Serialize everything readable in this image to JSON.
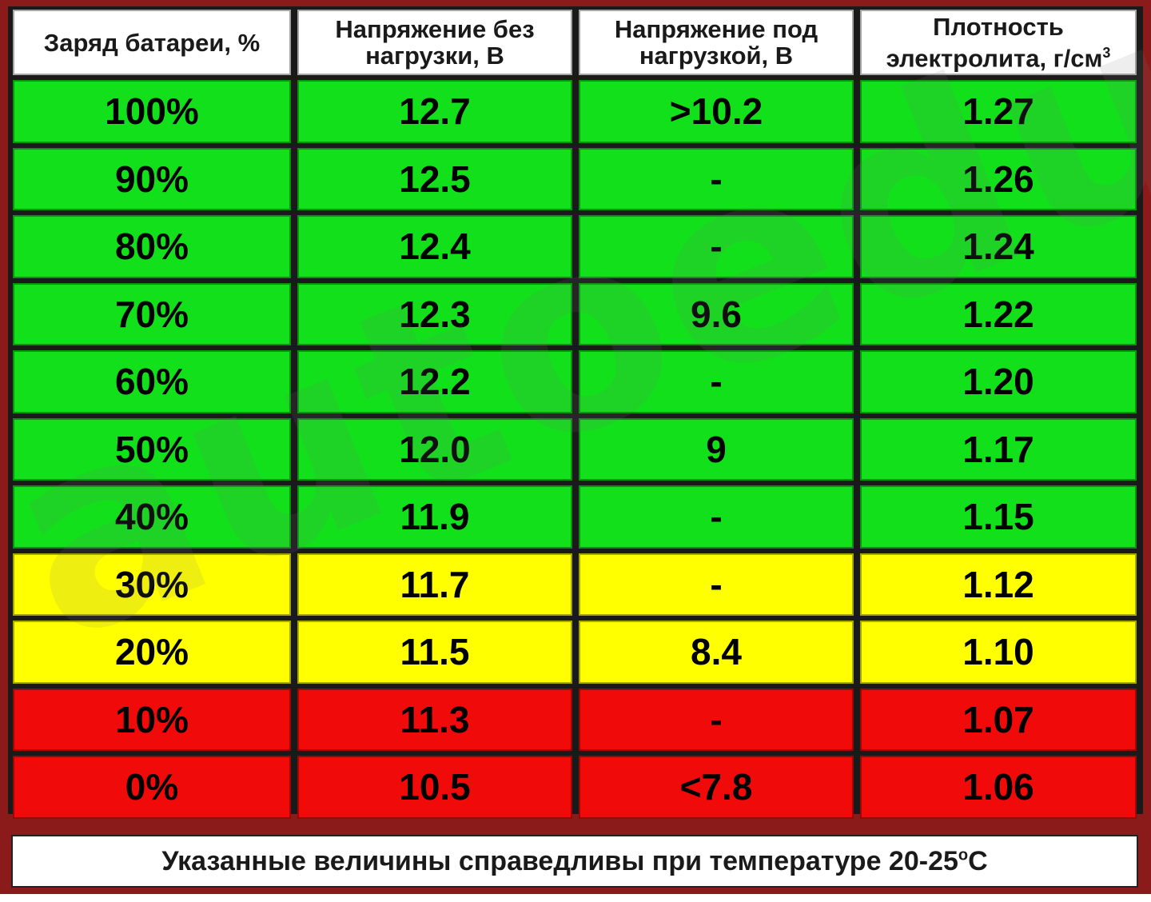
{
  "colors": {
    "green": "#12e01a",
    "yellow": "#ffff00",
    "red": "#f00a0a",
    "frame": "#8b1a1a"
  },
  "chart_data": {
    "type": "table",
    "headers": [
      {
        "line1": "Заряд батареи, %",
        "line2": ""
      },
      {
        "line1": "Напряжение без",
        "line2": "нагрузки, В"
      },
      {
        "line1": "Напряжение под",
        "line2": "нагрузкой, В"
      },
      {
        "line1": "Плотность",
        "line2": "электролита, г/см",
        "sup": "3"
      }
    ],
    "rows": [
      {
        "charge": "100%",
        "no_load": "12.7",
        "under_load": ">10.2",
        "density": "1.27",
        "status": "green"
      },
      {
        "charge": "90%",
        "no_load": "12.5",
        "under_load": "-",
        "density": "1.26",
        "status": "green"
      },
      {
        "charge": "80%",
        "no_load": "12.4",
        "under_load": "-",
        "density": "1.24",
        "status": "green"
      },
      {
        "charge": "70%",
        "no_load": "12.3",
        "under_load": "9.6",
        "density": "1.22",
        "status": "green"
      },
      {
        "charge": "60%",
        "no_load": "12.2",
        "under_load": "-",
        "density": "1.20",
        "status": "green"
      },
      {
        "charge": "50%",
        "no_load": "12.0",
        "under_load": "9",
        "density": "1.17",
        "status": "green"
      },
      {
        "charge": "40%",
        "no_load": "11.9",
        "under_load": "-",
        "density": "1.15",
        "status": "green"
      },
      {
        "charge": "30%",
        "no_load": "11.7",
        "under_load": "-",
        "density": "1.12",
        "status": "yellow"
      },
      {
        "charge": "20%",
        "no_load": "11.5",
        "under_load": "8.4",
        "density": "1.10",
        "status": "yellow"
      },
      {
        "charge": "10%",
        "no_load": "11.3",
        "under_load": "-",
        "density": "1.07",
        "status": "red"
      },
      {
        "charge": "0%",
        "no_load": "10.5",
        "under_load": "<7.8",
        "density": "1.06",
        "status": "red"
      }
    ]
  },
  "note": {
    "text": "Указанные величины справедливы при температуре 20-25",
    "sup": "o",
    "unit": "C"
  },
  "watermark": "autoedu"
}
